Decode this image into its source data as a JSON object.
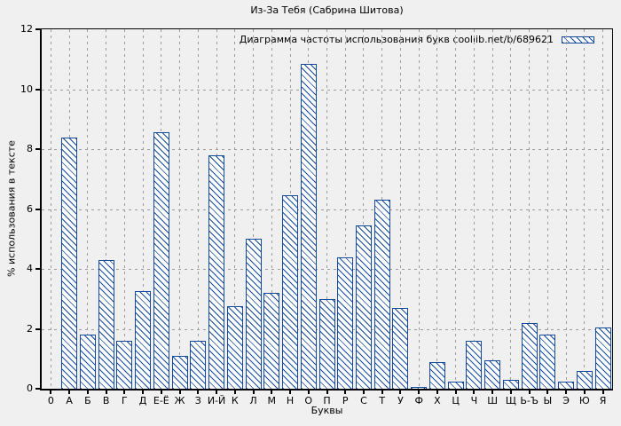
{
  "chart_data": {
    "type": "bar",
    "title": "Из-За Тебя (Сабрина Шитова)",
    "legend": "Диаграмма частоты использования букв coollib.net/b/689621",
    "legend_position": "top-right",
    "xlabel": "Буквы",
    "ylabel": "% использования в тексте",
    "ylim": [
      0,
      12
    ],
    "yticks": [
      0,
      2,
      4,
      6,
      8,
      10,
      12
    ],
    "grid": true,
    "categories": [
      "0",
      "А",
      "Б",
      "В",
      "Г",
      "Д",
      "Е-Ё",
      "Ж",
      "З",
      "И-Й",
      "К",
      "Л",
      "М",
      "Н",
      "О",
      "П",
      "Р",
      "С",
      "Т",
      "У",
      "Ф",
      "Х",
      "Ц",
      "Ч",
      "Ш",
      "Щ",
      "Ь-Ъ",
      "Ы",
      "Э",
      "Ю",
      "Я"
    ],
    "values": [
      0,
      8.4,
      1.8,
      4.3,
      1.6,
      3.25,
      8.55,
      1.1,
      1.6,
      7.8,
      2.75,
      5.0,
      3.2,
      6.45,
      10.85,
      3.0,
      4.4,
      5.45,
      6.3,
      2.7,
      0.05,
      0.9,
      0.25,
      1.6,
      0.95,
      0.3,
      2.2,
      1.8,
      0.25,
      0.6,
      2.05
    ],
    "colors": {
      "background": "#f0f0f0",
      "bar_border": "#14499d",
      "bar_fill": "#ffffff",
      "hatch": "#14499d",
      "grid": "#9c9c9c",
      "axis": "#000000"
    }
  }
}
